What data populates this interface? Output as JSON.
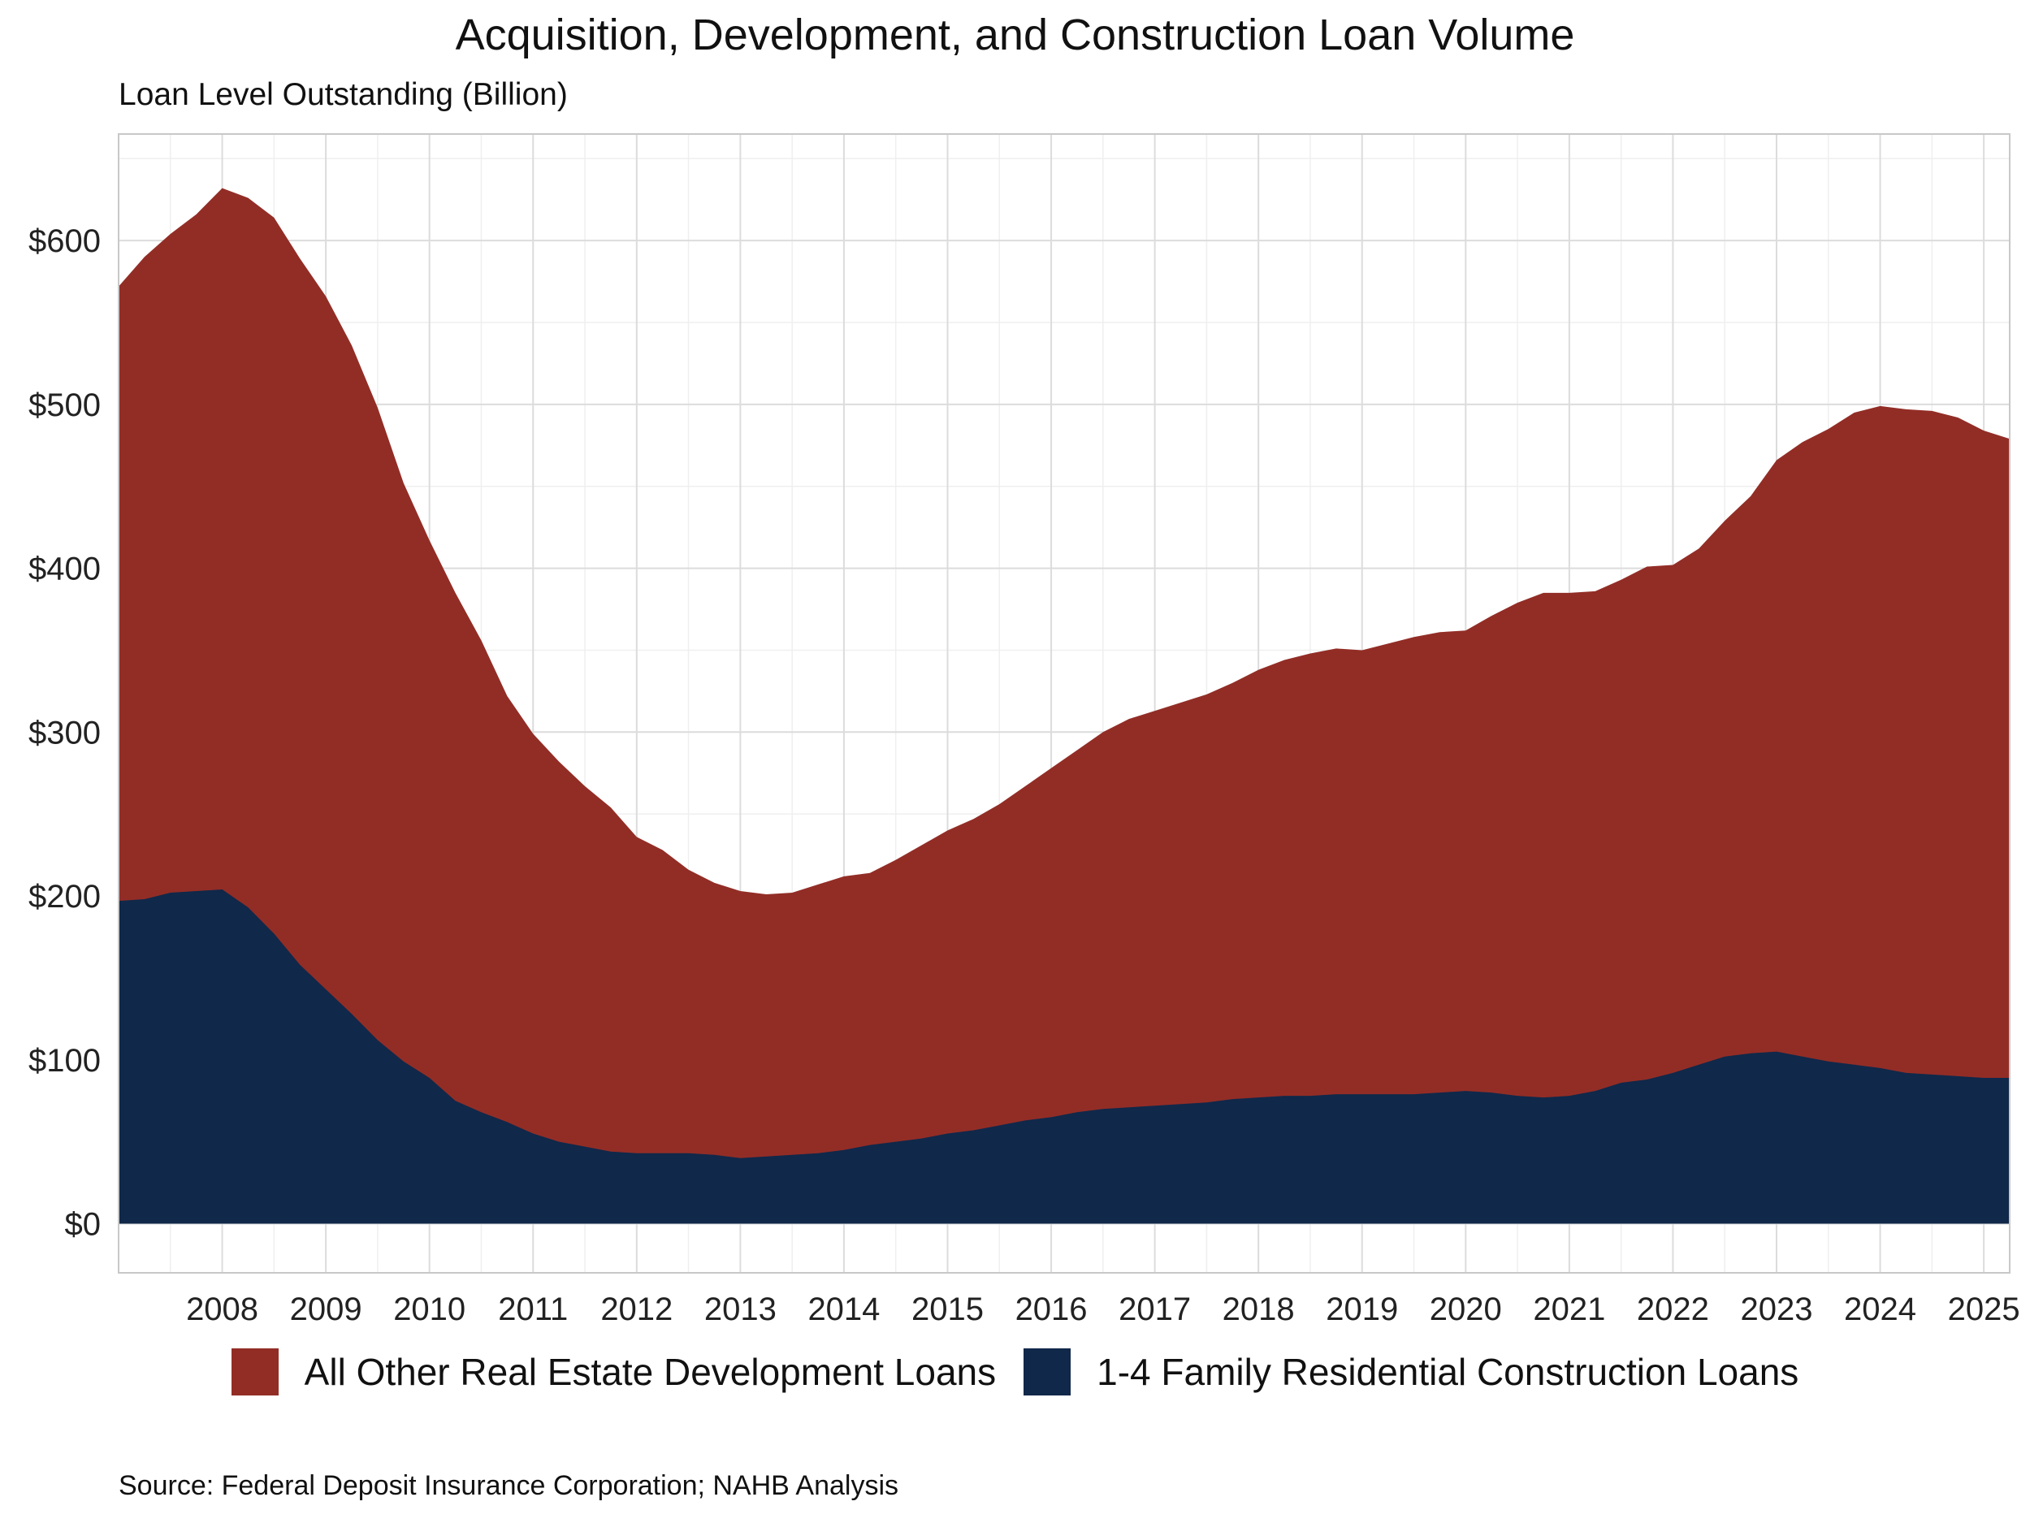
{
  "title": "Acquisition, Development, and Construction Loan Volume",
  "subtitle": "Loan Level Outstanding (Billion)",
  "caption": "Source: Federal Deposit Insurance Corporation; NAHB Analysis",
  "chart_data": {
    "type": "area",
    "stacked": true,
    "xlim": [
      2007.0,
      2025.25
    ],
    "ylim": [
      -30,
      665
    ],
    "x_ticks": [
      2008,
      2009,
      2010,
      2011,
      2012,
      2013,
      2014,
      2015,
      2016,
      2017,
      2018,
      2019,
      2020,
      2021,
      2022,
      2023,
      2024,
      2025
    ],
    "x_tick_labels": [
      "2008",
      "2009",
      "2010",
      "2011",
      "2012",
      "2013",
      "2014",
      "2015",
      "2016",
      "2017",
      "2018",
      "2019",
      "2020",
      "2021",
      "2022",
      "2023",
      "2024",
      "2025"
    ],
    "y_ticks": [
      0,
      100,
      200,
      300,
      400,
      500,
      600
    ],
    "y_tick_labels": [
      "$0",
      "$100",
      "$200",
      "$300",
      "$400",
      "$500",
      "$600"
    ],
    "grid": true,
    "legend_position": "bottom",
    "x": [
      2007.0,
      2007.25,
      2007.5,
      2007.75,
      2008.0,
      2008.25,
      2008.5,
      2008.75,
      2009.0,
      2009.25,
      2009.5,
      2009.75,
      2010.0,
      2010.25,
      2010.5,
      2010.75,
      2011.0,
      2011.25,
      2011.5,
      2011.75,
      2012.0,
      2012.25,
      2012.5,
      2012.75,
      2013.0,
      2013.25,
      2013.5,
      2013.75,
      2014.0,
      2014.25,
      2014.5,
      2014.75,
      2015.0,
      2015.25,
      2015.5,
      2015.75,
      2016.0,
      2016.25,
      2016.5,
      2016.75,
      2017.0,
      2017.25,
      2017.5,
      2017.75,
      2018.0,
      2018.25,
      2018.5,
      2018.75,
      2019.0,
      2019.25,
      2019.5,
      2019.75,
      2020.0,
      2020.25,
      2020.5,
      2020.75,
      2021.0,
      2021.25,
      2021.5,
      2021.75,
      2022.0,
      2022.25,
      2022.5,
      2022.75,
      2023.0,
      2023.25,
      2023.5,
      2023.75,
      2024.0,
      2024.25,
      2024.5,
      2024.75,
      2025.0,
      2025.25
    ],
    "series": [
      {
        "name": "1-4 Family Residential Construction Loans",
        "color": "#10284a",
        "values": [
          197,
          198,
          202,
          203,
          204,
          193,
          177,
          158,
          143,
          128,
          112,
          99,
          89,
          75,
          68,
          62,
          55,
          50,
          47,
          44,
          43,
          43,
          43,
          42,
          40,
          41,
          42,
          43,
          45,
          48,
          50,
          52,
          55,
          57,
          60,
          63,
          65,
          68,
          70,
          71,
          72,
          73,
          74,
          76,
          77,
          78,
          78,
          79,
          79,
          79,
          79,
          80,
          81,
          80,
          78,
          77,
          78,
          81,
          86,
          88,
          92,
          97,
          102,
          104,
          105,
          102,
          99,
          97,
          95,
          92,
          91,
          90,
          89,
          89
        ]
      },
      {
        "name": "All Other Real Estate Development Loans",
        "color": "#922d26",
        "values": [
          375,
          392,
          402,
          413,
          428,
          433,
          437,
          431,
          423,
          408,
          386,
          353,
          328,
          310,
          288,
          260,
          244,
          232,
          220,
          210,
          193,
          185,
          173,
          166,
          163,
          160,
          160,
          164,
          167,
          166,
          172,
          179,
          185,
          190,
          196,
          204,
          213,
          221,
          230,
          237,
          241,
          245,
          249,
          254,
          261,
          266,
          270,
          272,
          271,
          275,
          279,
          281,
          281,
          291,
          301,
          308,
          307,
          305,
          307,
          313,
          310,
          315,
          327,
          340,
          361,
          375,
          386,
          398,
          404,
          405,
          405,
          402,
          395,
          390
        ],
        "total_values": [
          572,
          590,
          604,
          616,
          632,
          626,
          614,
          589,
          566,
          536,
          498,
          452,
          417,
          385,
          356,
          322,
          299,
          282,
          267,
          254,
          236,
          228,
          216,
          208,
          203,
          201,
          202,
          207,
          212,
          214,
          222,
          231,
          240,
          247,
          256,
          267,
          278,
          289,
          300,
          308,
          313,
          318,
          323,
          330,
          338,
          344,
          348,
          351,
          350,
          354,
          358,
          361,
          362,
          371,
          379,
          385,
          385,
          386,
          393,
          401,
          402,
          412,
          429,
          444,
          466,
          477,
          485,
          495,
          499,
          497,
          496,
          492,
          484,
          479
        ]
      }
    ]
  }
}
